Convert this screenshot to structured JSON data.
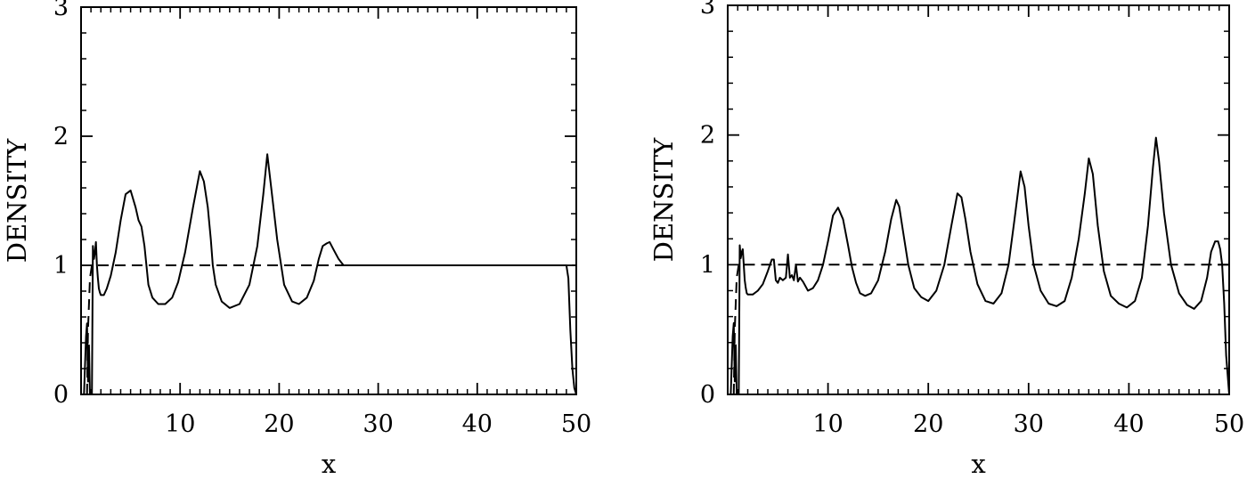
{
  "chart_data": [
    {
      "type": "line",
      "xlabel": "x",
      "ylabel": "DENSITY",
      "xlim": [
        0,
        50
      ],
      "ylim": [
        0,
        3
      ],
      "xticks": [
        10,
        20,
        30,
        40,
        50
      ],
      "xtick_labels": [
        "10",
        "20",
        "30",
        "40",
        "50"
      ],
      "yticks": [
        0,
        1,
        2,
        3
      ],
      "ytick_labels": [
        "0",
        "1",
        "2",
        "3"
      ],
      "grid": false,
      "series": [
        {
          "style": "solid",
          "x": [
            0,
            0.3,
            0.5,
            0.6,
            0.7,
            0.8,
            0.9,
            1.0,
            1.1,
            1.2,
            1.3,
            1.4,
            1.5,
            1.6,
            1.7,
            1.8,
            1.9,
            2.0,
            2.3,
            2.6,
            3.0,
            3.5,
            4.0,
            4.5,
            5.0,
            5.5,
            5.8,
            6.1,
            6.4,
            6.6,
            6.8,
            7.2,
            7.8,
            8.5,
            9.2,
            9.8,
            10.5,
            11.3,
            12.0,
            12.4,
            12.8,
            13.1,
            13.3,
            13.6,
            14.2,
            15.0,
            16.0,
            17.0,
            17.8,
            18.4,
            18.8,
            19.2,
            19.8,
            20.5,
            21.3,
            22.0,
            22.8,
            23.5,
            24.0,
            24.4,
            24.8,
            25.1,
            25.5,
            26.0,
            26.5,
            27.0,
            30.0,
            35.0,
            40.0,
            45.0,
            48.0,
            49.0,
            49.2,
            49.4,
            49.6,
            49.8,
            50.0
          ],
          "y": [
            0,
            0,
            0.45,
            0.55,
            0.1,
            0.38,
            0,
            0,
            0,
            1.15,
            1.05,
            1.1,
            1.18,
            1.0,
            0.9,
            0.82,
            0.79,
            0.77,
            0.77,
            0.82,
            0.92,
            1.1,
            1.35,
            1.55,
            1.58,
            1.45,
            1.35,
            1.3,
            1.15,
            1.0,
            0.85,
            0.75,
            0.7,
            0.7,
            0.75,
            0.87,
            1.1,
            1.45,
            1.73,
            1.65,
            1.45,
            1.2,
            1.0,
            0.85,
            0.72,
            0.67,
            0.7,
            0.85,
            1.15,
            1.55,
            1.86,
            1.6,
            1.2,
            0.85,
            0.72,
            0.7,
            0.75,
            0.88,
            1.05,
            1.15,
            1.17,
            1.18,
            1.12,
            1.05,
            1.0,
            1.0,
            1.0,
            1.0,
            1.0,
            1.0,
            1.0,
            1.0,
            0.9,
            0.5,
            0.2,
            0.05,
            0
          ]
        },
        {
          "style": "dashed",
          "x": [
            0.6,
            0.7,
            0.9,
            1.1,
            50
          ],
          "y": [
            0,
            0.5,
            0.9,
            1.0,
            1.0
          ]
        }
      ]
    },
    {
      "type": "line",
      "xlabel": "x",
      "ylabel": "DENSITY",
      "xlim": [
        0,
        50
      ],
      "ylim": [
        0,
        3
      ],
      "xticks": [
        10,
        20,
        30,
        40,
        50
      ],
      "xtick_labels": [
        "10",
        "20",
        "30",
        "40",
        "50"
      ],
      "yticks": [
        0,
        1,
        2,
        3
      ],
      "ytick_labels": [
        "0",
        "1",
        "2",
        "3"
      ],
      "grid": false,
      "series": [
        {
          "style": "solid",
          "x": [
            0,
            0.3,
            0.5,
            0.6,
            0.7,
            0.8,
            0.9,
            1.0,
            1.1,
            1.2,
            1.3,
            1.4,
            1.5,
            1.6,
            1.7,
            1.8,
            1.9,
            2.0,
            2.5,
            3.0,
            3.5,
            4.0,
            4.4,
            4.6,
            4.8,
            5.0,
            5.2,
            5.5,
            5.8,
            6.0,
            6.2,
            6.4,
            6.6,
            6.8,
            7.0,
            7.2,
            7.5,
            8.0,
            8.5,
            9.0,
            9.5,
            10.0,
            10.5,
            11.0,
            11.5,
            12.0,
            12.4,
            12.8,
            13.2,
            13.7,
            14.3,
            15.0,
            15.7,
            16.3,
            16.8,
            17.1,
            17.5,
            18.0,
            18.6,
            19.3,
            20.0,
            20.8,
            21.6,
            22.3,
            22.9,
            23.3,
            23.7,
            24.2,
            24.9,
            25.7,
            26.5,
            27.3,
            28.0,
            28.6,
            29.2,
            29.6,
            30.0,
            30.5,
            31.2,
            32.0,
            32.8,
            33.6,
            34.3,
            35.0,
            35.6,
            36.0,
            36.4,
            36.9,
            37.5,
            38.2,
            39.0,
            39.8,
            40.6,
            41.3,
            41.9,
            42.4,
            42.7,
            43.0,
            43.5,
            44.2,
            45.0,
            45.8,
            46.5,
            47.2,
            47.8,
            48.2,
            48.6,
            48.9,
            49.1,
            49.3,
            49.5,
            49.7,
            50.0
          ],
          "y": [
            0,
            0,
            0.45,
            0.55,
            0.1,
            0.38,
            0,
            0,
            0,
            1.15,
            1.05,
            1.1,
            1.12,
            1.0,
            0.88,
            0.82,
            0.78,
            0.77,
            0.77,
            0.8,
            0.85,
            0.95,
            1.04,
            1.04,
            0.88,
            0.86,
            0.9,
            0.88,
            0.9,
            1.08,
            0.9,
            0.92,
            0.88,
            1.0,
            0.87,
            0.9,
            0.87,
            0.8,
            0.82,
            0.88,
            1.0,
            1.18,
            1.38,
            1.44,
            1.35,
            1.15,
            0.98,
            0.86,
            0.78,
            0.76,
            0.78,
            0.88,
            1.1,
            1.35,
            1.5,
            1.45,
            1.25,
            1.0,
            0.82,
            0.75,
            0.72,
            0.8,
            1.0,
            1.3,
            1.55,
            1.52,
            1.35,
            1.1,
            0.85,
            0.72,
            0.7,
            0.78,
            1.0,
            1.35,
            1.72,
            1.6,
            1.3,
            1.0,
            0.8,
            0.7,
            0.68,
            0.72,
            0.9,
            1.2,
            1.55,
            1.82,
            1.7,
            1.3,
            0.95,
            0.76,
            0.7,
            0.67,
            0.72,
            0.9,
            1.3,
            1.75,
            1.98,
            1.8,
            1.4,
            1.0,
            0.78,
            0.69,
            0.66,
            0.72,
            0.9,
            1.1,
            1.18,
            1.18,
            1.12,
            1.0,
            0.7,
            0.3,
            0
          ]
        },
        {
          "style": "dashed",
          "x": [
            0.6,
            0.7,
            0.9,
            1.1,
            50
          ],
          "y": [
            0,
            0.5,
            0.9,
            1.0,
            1.0
          ]
        }
      ]
    }
  ]
}
